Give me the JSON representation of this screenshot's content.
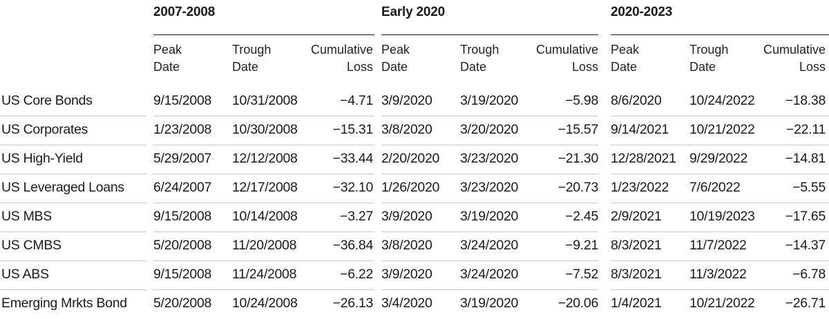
{
  "groups": [
    {
      "label": "2007-2008"
    },
    {
      "label": "Early 2020"
    },
    {
      "label": "2020-2023"
    }
  ],
  "subheaders": {
    "peak": "Peak\nDate",
    "trough": "Trough\nDate",
    "loss": "Cumulative\nLoss"
  },
  "rows": [
    {
      "name": "US Core Bonds",
      "cells": [
        "9/15/2008",
        "10/31/2008",
        "−4.71",
        "3/9/2020",
        "3/19/2020",
        "−5.98",
        "8/6/2020",
        "10/24/2022",
        "−18.38"
      ]
    },
    {
      "name": "US Corporates",
      "cells": [
        "1/23/2008",
        "10/30/2008",
        "−15.31",
        "3/8/2020",
        "3/20/2020",
        "−15.57",
        "9/14/2021",
        "10/21/2022",
        "−22.11"
      ]
    },
    {
      "name": "US High-Yield",
      "cells": [
        "5/29/2007",
        "12/12/2008",
        "−33.44",
        "2/20/2020",
        "3/23/2020",
        "−21.30",
        "12/28/2021",
        "9/29/2022",
        "−14.81"
      ]
    },
    {
      "name": "US Leveraged Loans",
      "cells": [
        "6/24/2007",
        "12/17/2008",
        "−32.10",
        "1/26/2020",
        "3/23/2020",
        "−20.73",
        "1/23/2022",
        "7/6/2022",
        "−5.55"
      ]
    },
    {
      "name": "US MBS",
      "cells": [
        "9/15/2008",
        "10/14/2008",
        "−3.27",
        "3/9/2020",
        "3/19/2020",
        "−2.45",
        "2/9/2021",
        "10/19/2023",
        "−17.65"
      ]
    },
    {
      "name": "US CMBS",
      "cells": [
        "5/20/2008",
        "11/20/2008",
        "−36.84",
        "3/8/2020",
        "3/24/2020",
        "−9.21",
        "8/3/2021",
        "11/7/2022",
        "−14.37"
      ]
    },
    {
      "name": "US ABS",
      "cells": [
        "9/15/2008",
        "11/24/2008",
        "−6.22",
        "3/9/2020",
        "3/24/2020",
        "−7.52",
        "8/3/2021",
        "11/3/2022",
        "−6.78"
      ]
    },
    {
      "name": "Emerging Mrkts Bond",
      "cells": [
        "5/20/2008",
        "10/24/2008",
        "−26.13",
        "3/4/2020",
        "3/19/2020",
        "−20.06",
        "1/4/2021",
        "10/21/2022",
        "−26.71"
      ]
    }
  ]
}
